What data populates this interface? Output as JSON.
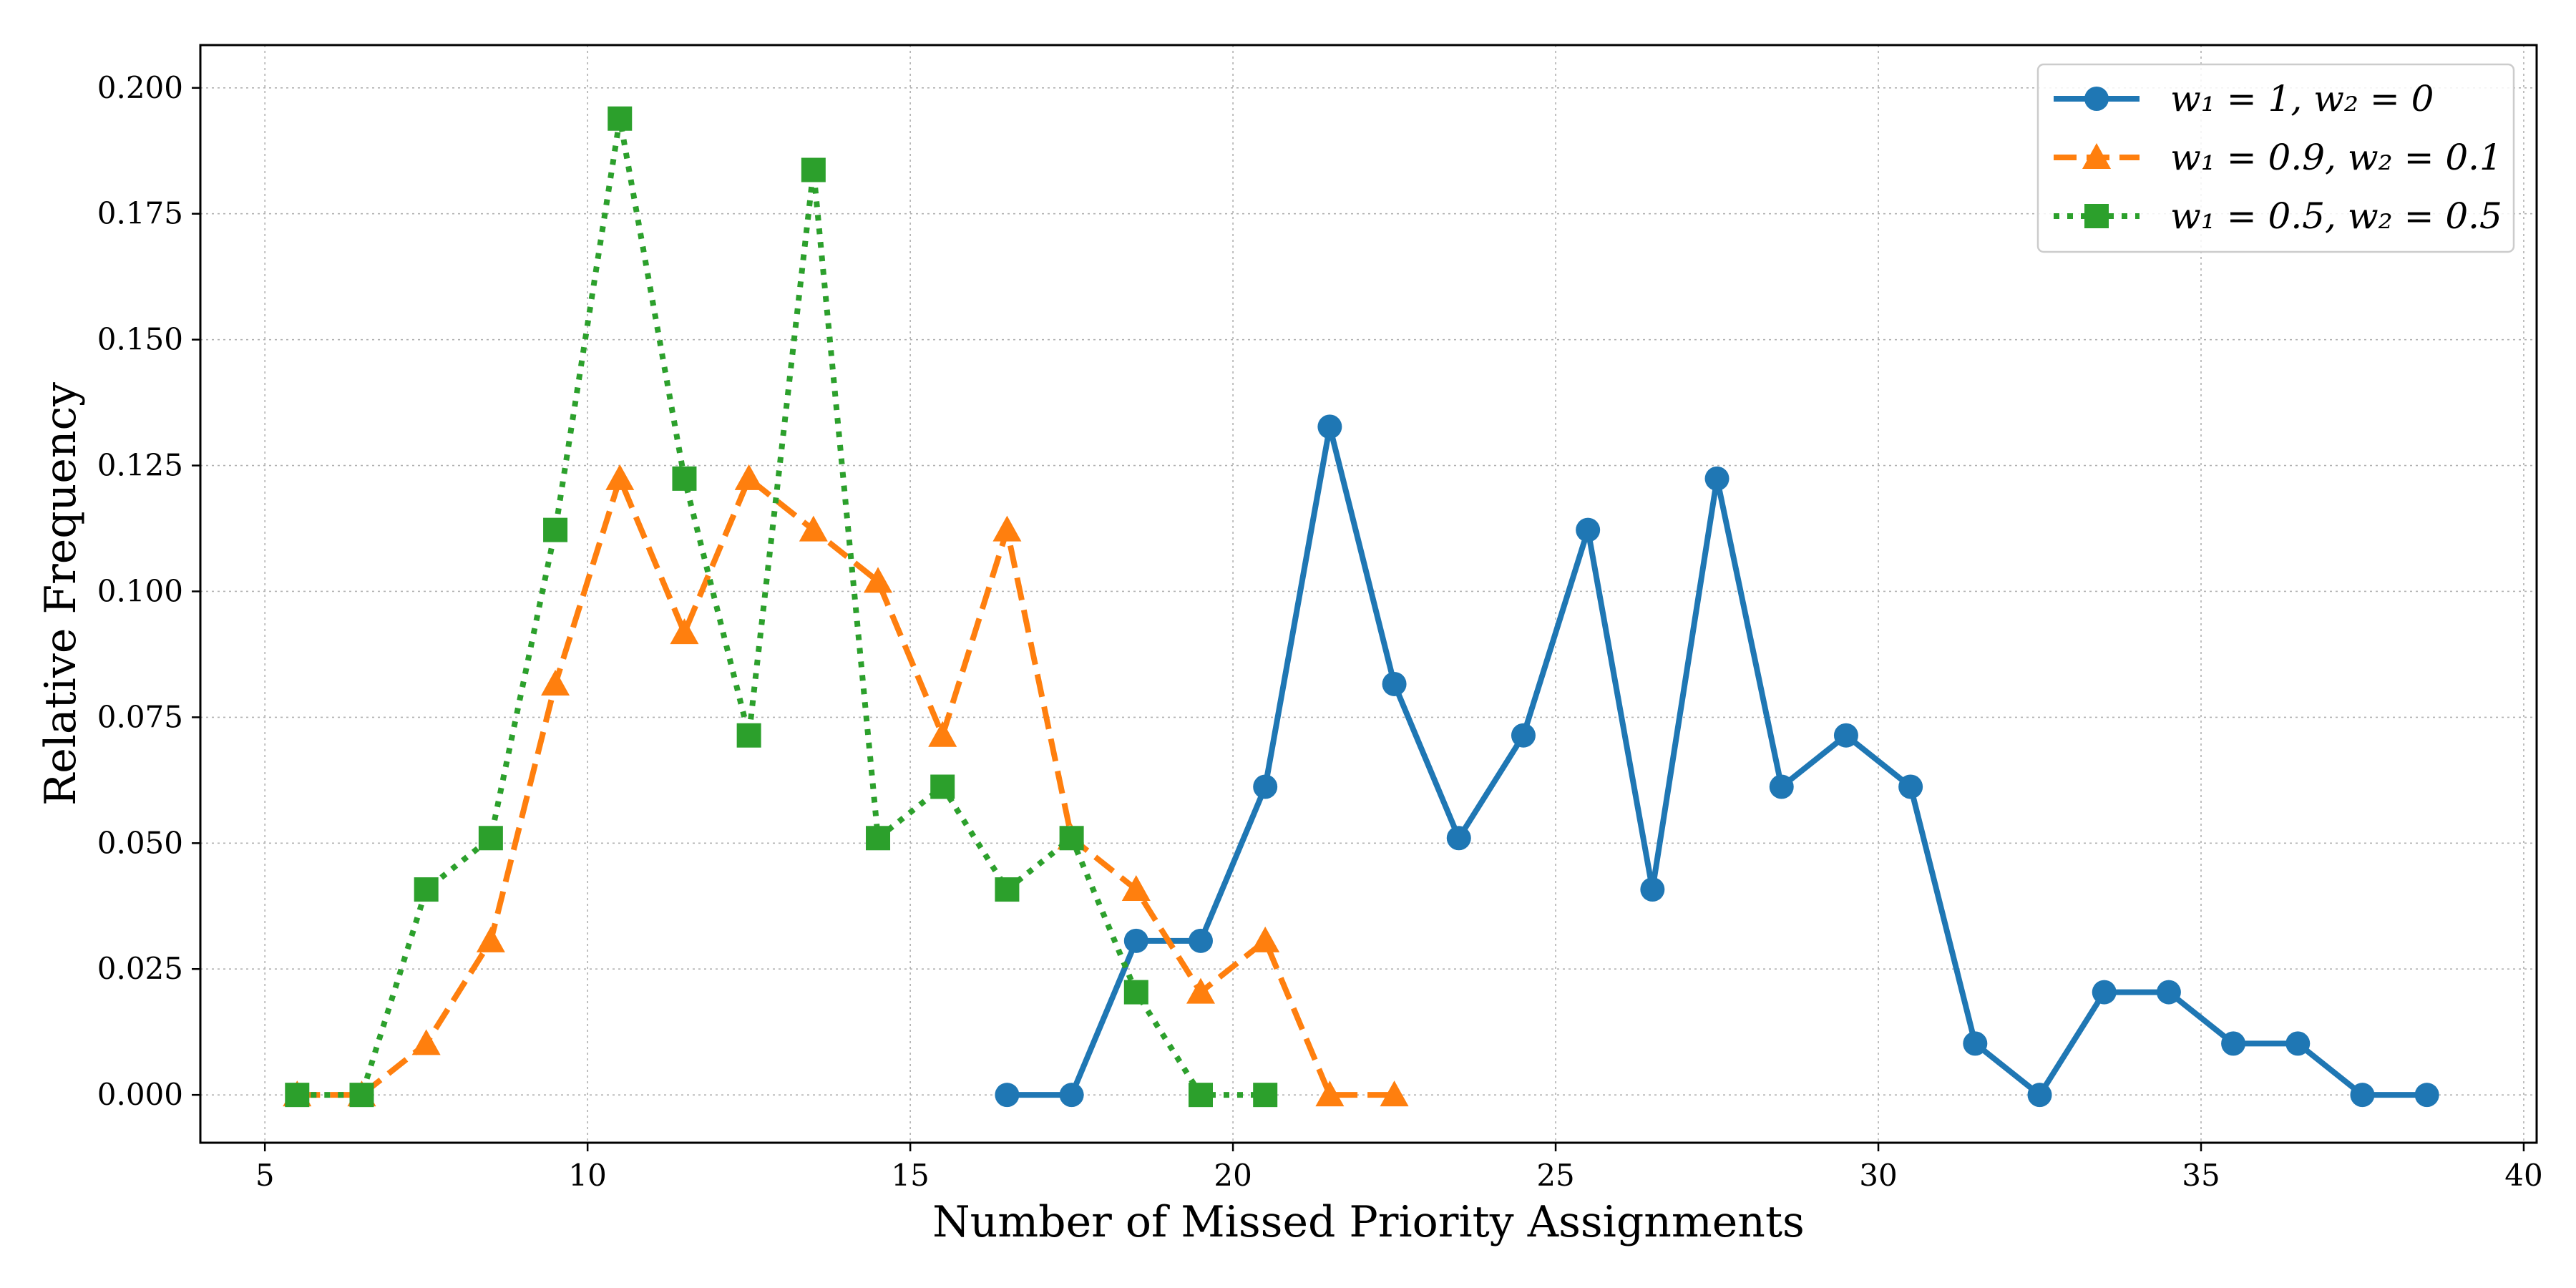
{
  "chart_data": {
    "type": "line",
    "title": "",
    "xlabel": "Number of Missed Priority Assignments",
    "ylabel": "Relative Frequency",
    "xlim": [
      4,
      40.2
    ],
    "ylim": [
      -0.0095,
      0.2085
    ],
    "xticks": [
      5,
      10,
      15,
      20,
      25,
      30,
      35,
      40
    ],
    "yticks": [
      0.0,
      0.025,
      0.05,
      0.075,
      0.1,
      0.125,
      0.15,
      0.175,
      0.2
    ],
    "ytick_labels": [
      "0.000",
      "0.025",
      "0.050",
      "0.075",
      "0.100",
      "0.125",
      "0.150",
      "0.175",
      "0.200"
    ],
    "grid": true,
    "legend_position": "top-right",
    "series": [
      {
        "name": "w1 = 1, w2 = 0",
        "label": "w₁ = 1, w₂ = 0",
        "color": "#1f77b4",
        "linestyle": "solid",
        "marker": "circle",
        "x": [
          16.5,
          17.5,
          18.5,
          19.5,
          20.5,
          21.5,
          22.5,
          23.5,
          24.5,
          25.5,
          26.5,
          27.5,
          28.5,
          29.5,
          30.5,
          31.5,
          32.5,
          33.5,
          34.5,
          35.5,
          36.5,
          37.5,
          38.5
        ],
        "y": [
          0.0,
          0.0,
          0.0306,
          0.0306,
          0.0612,
          0.1327,
          0.0816,
          0.051,
          0.0714,
          0.1122,
          0.0408,
          0.1224,
          0.0612,
          0.0714,
          0.0612,
          0.0102,
          0.0,
          0.0204,
          0.0204,
          0.0102,
          0.0102,
          0.0,
          0.0
        ]
      },
      {
        "name": "w1 = 0.9, w2 = 0.1",
        "label": "w₁ = 0.9, w₂ = 0.1",
        "color": "#ff7f0e",
        "linestyle": "dashed",
        "marker": "triangle",
        "x": [
          5.5,
          6.5,
          7.5,
          8.5,
          9.5,
          10.5,
          11.5,
          12.5,
          13.5,
          14.5,
          15.5,
          16.5,
          17.5,
          18.5,
          19.5,
          20.5,
          21.5,
          22.5
        ],
        "y": [
          0.0,
          0.0,
          0.0102,
          0.0306,
          0.0816,
          0.1224,
          0.0918,
          0.1224,
          0.1122,
          0.102,
          0.0714,
          0.1122,
          0.051,
          0.0408,
          0.0204,
          0.0306,
          0.0,
          0.0
        ]
      },
      {
        "name": "w1 = 0.5, w2 = 0.5",
        "label": "w₁ = 0.5, w₂ = 0.5",
        "color": "#2ca02c",
        "linestyle": "dotted",
        "marker": "square",
        "x": [
          5.5,
          6.5,
          7.5,
          8.5,
          9.5,
          10.5,
          11.5,
          12.5,
          13.5,
          14.5,
          15.5,
          16.5,
          17.5,
          18.5,
          19.5,
          20.5
        ],
        "y": [
          0.0,
          0.0,
          0.0408,
          0.051,
          0.1122,
          0.1939,
          0.1224,
          0.0714,
          0.1837,
          0.051,
          0.0612,
          0.0408,
          0.051,
          0.0204,
          0.0,
          0.0
        ]
      }
    ]
  }
}
